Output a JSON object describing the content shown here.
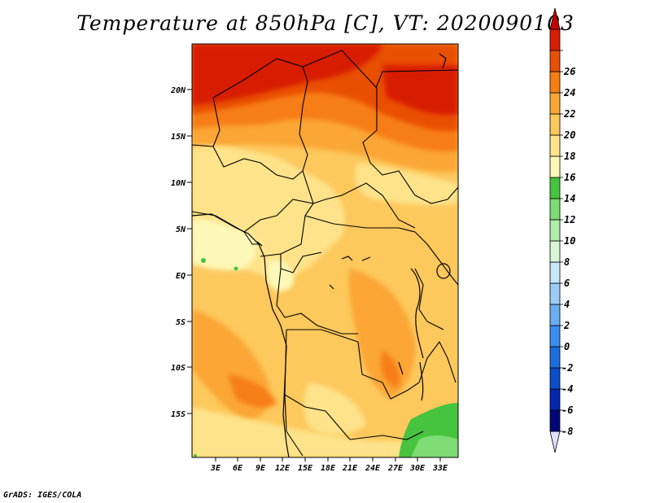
{
  "title": "Temperature at 850hPa [C], VT: 2020090103",
  "footer": "GrADS: IGES/COLA",
  "map": {
    "lat_labels": [
      "20N",
      "15N",
      "10N",
      "5N",
      "EQ",
      "5S",
      "10S",
      "15S"
    ],
    "lon_labels": [
      "3E",
      "6E",
      "9E",
      "12E",
      "15E",
      "18E",
      "21E",
      "24E",
      "27E",
      "30E",
      "33E"
    ]
  },
  "colorbar": {
    "labels": [
      "26",
      "24",
      "22",
      "20",
      "18",
      "16",
      "14",
      "12",
      "10",
      "8",
      "6",
      "4",
      "2",
      "0",
      "-2",
      "-4",
      "-6",
      "-8"
    ],
    "colors": [
      "#e0e0ff",
      "#000878",
      "#0025b0",
      "#0a4ec9",
      "#1a6ee0",
      "#3a8ef0",
      "#6aaef2",
      "#9accf6",
      "#c6e6fa",
      "#d8f7d8",
      "#b0eeaa",
      "#7ddc73",
      "#46c43f",
      "#fef8b8",
      "#fee38a",
      "#fdc85c",
      "#fba634",
      "#f77e12",
      "#e95005",
      "#d81e00",
      "#c40000"
    ]
  }
}
